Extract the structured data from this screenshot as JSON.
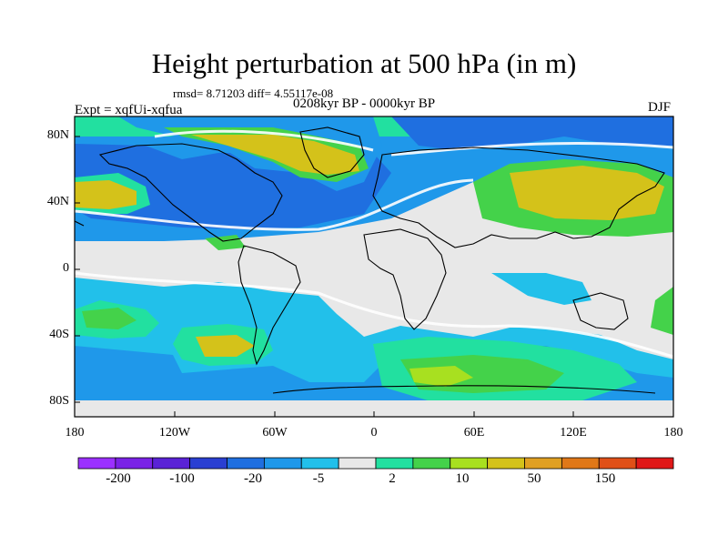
{
  "header": {
    "title": "Height perturbation at 500 hPa (in m)",
    "stats": "rmsd= 8.71203  diff= 4.55117e-08",
    "experiment": "Expt = xqfUi-xqfua",
    "period": "0208kyr BP - 0000kyr BP",
    "season": "DJF"
  },
  "map": {
    "lat_ticks": [
      "80N",
      "40N",
      "0",
      "40S",
      "80S"
    ],
    "lon_ticks": [
      "180",
      "120W",
      "60W",
      "0",
      "60E",
      "120E",
      "180"
    ]
  },
  "colorbar": {
    "colors": [
      "#9b30ff",
      "#7a22e6",
      "#5a22d6",
      "#2a3fd2",
      "#1f6fe0",
      "#1f98ea",
      "#22c0ea",
      "#e8e8e8",
      "#22e0a0",
      "#44d24a",
      "#a8e020",
      "#d4c21a",
      "#e0a022",
      "#e07818",
      "#e05018",
      "#e01818"
    ],
    "labels": [
      "-200",
      "-100",
      "-20",
      "-5",
      "2",
      "10",
      "50",
      "150"
    ]
  }
}
